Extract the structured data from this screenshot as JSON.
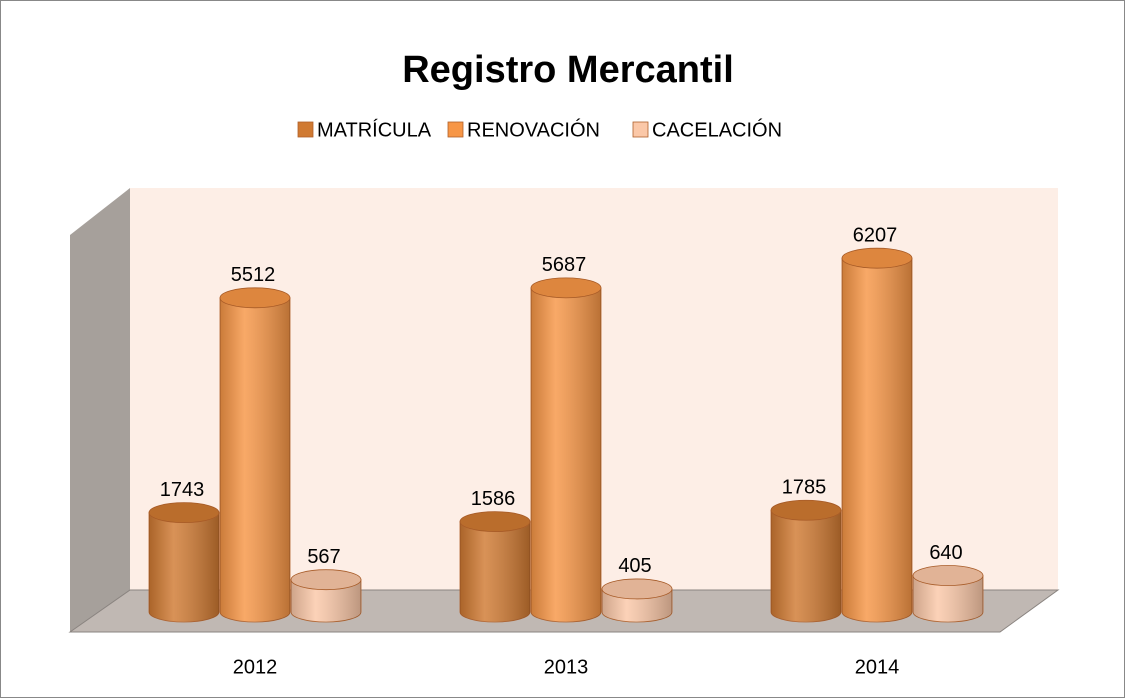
{
  "chart_data": {
    "type": "bar",
    "title": "Registro Mercantil",
    "categories": [
      "2012",
      "2013",
      "2014"
    ],
    "series": [
      {
        "name": "MATRÍCULA",
        "color": "#d07a32",
        "values": [
          1743,
          1586,
          1785
        ]
      },
      {
        "name": "RENOVACIÓN",
        "color": "#f79646",
        "values": [
          5512,
          5687,
          6207
        ]
      },
      {
        "name": "CACELACIÓN",
        "color": "#fbc8a8",
        "values": [
          567,
          405,
          640
        ]
      }
    ],
    "legend": "top"
  }
}
